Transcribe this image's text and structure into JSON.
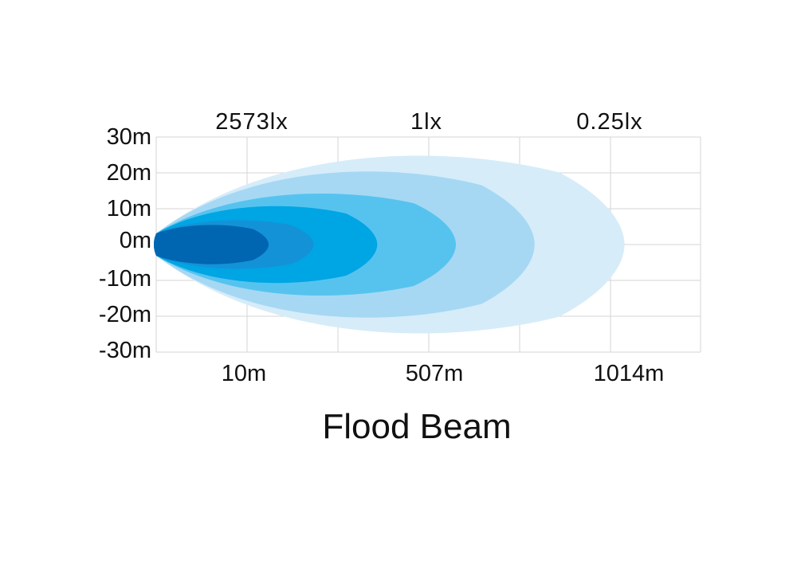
{
  "chart_data": {
    "type": "area",
    "title": "Flood Beam",
    "y_ticks": [
      "30m",
      "20m",
      "10m",
      "0m",
      "-10m",
      "-20m",
      "-30m"
    ],
    "x_ticks": [
      "10m",
      "507m",
      "1014m"
    ],
    "lux_labels": [
      "2573lx",
      "1lx",
      "0.25lx"
    ],
    "ylim": [
      -30,
      30
    ],
    "grid": true,
    "contours": [
      {
        "level": 1,
        "reach": 1250,
        "half_width": 28,
        "color": "#d6ecf9"
      },
      {
        "level": 2,
        "reach": 1010,
        "half_width": 23,
        "color": "#a6d8f4"
      },
      {
        "level": 3,
        "reach": 800,
        "half_width": 16,
        "color": "#56c3ef"
      },
      {
        "level": 4,
        "reach": 590,
        "half_width": 12,
        "color": "#00a5e3"
      },
      {
        "level": 5,
        "reach": 420,
        "half_width": 7.5,
        "color": "#1392d8"
      },
      {
        "level": 6,
        "reach": 300,
        "half_width": 6,
        "color": "#0066b1"
      }
    ]
  }
}
